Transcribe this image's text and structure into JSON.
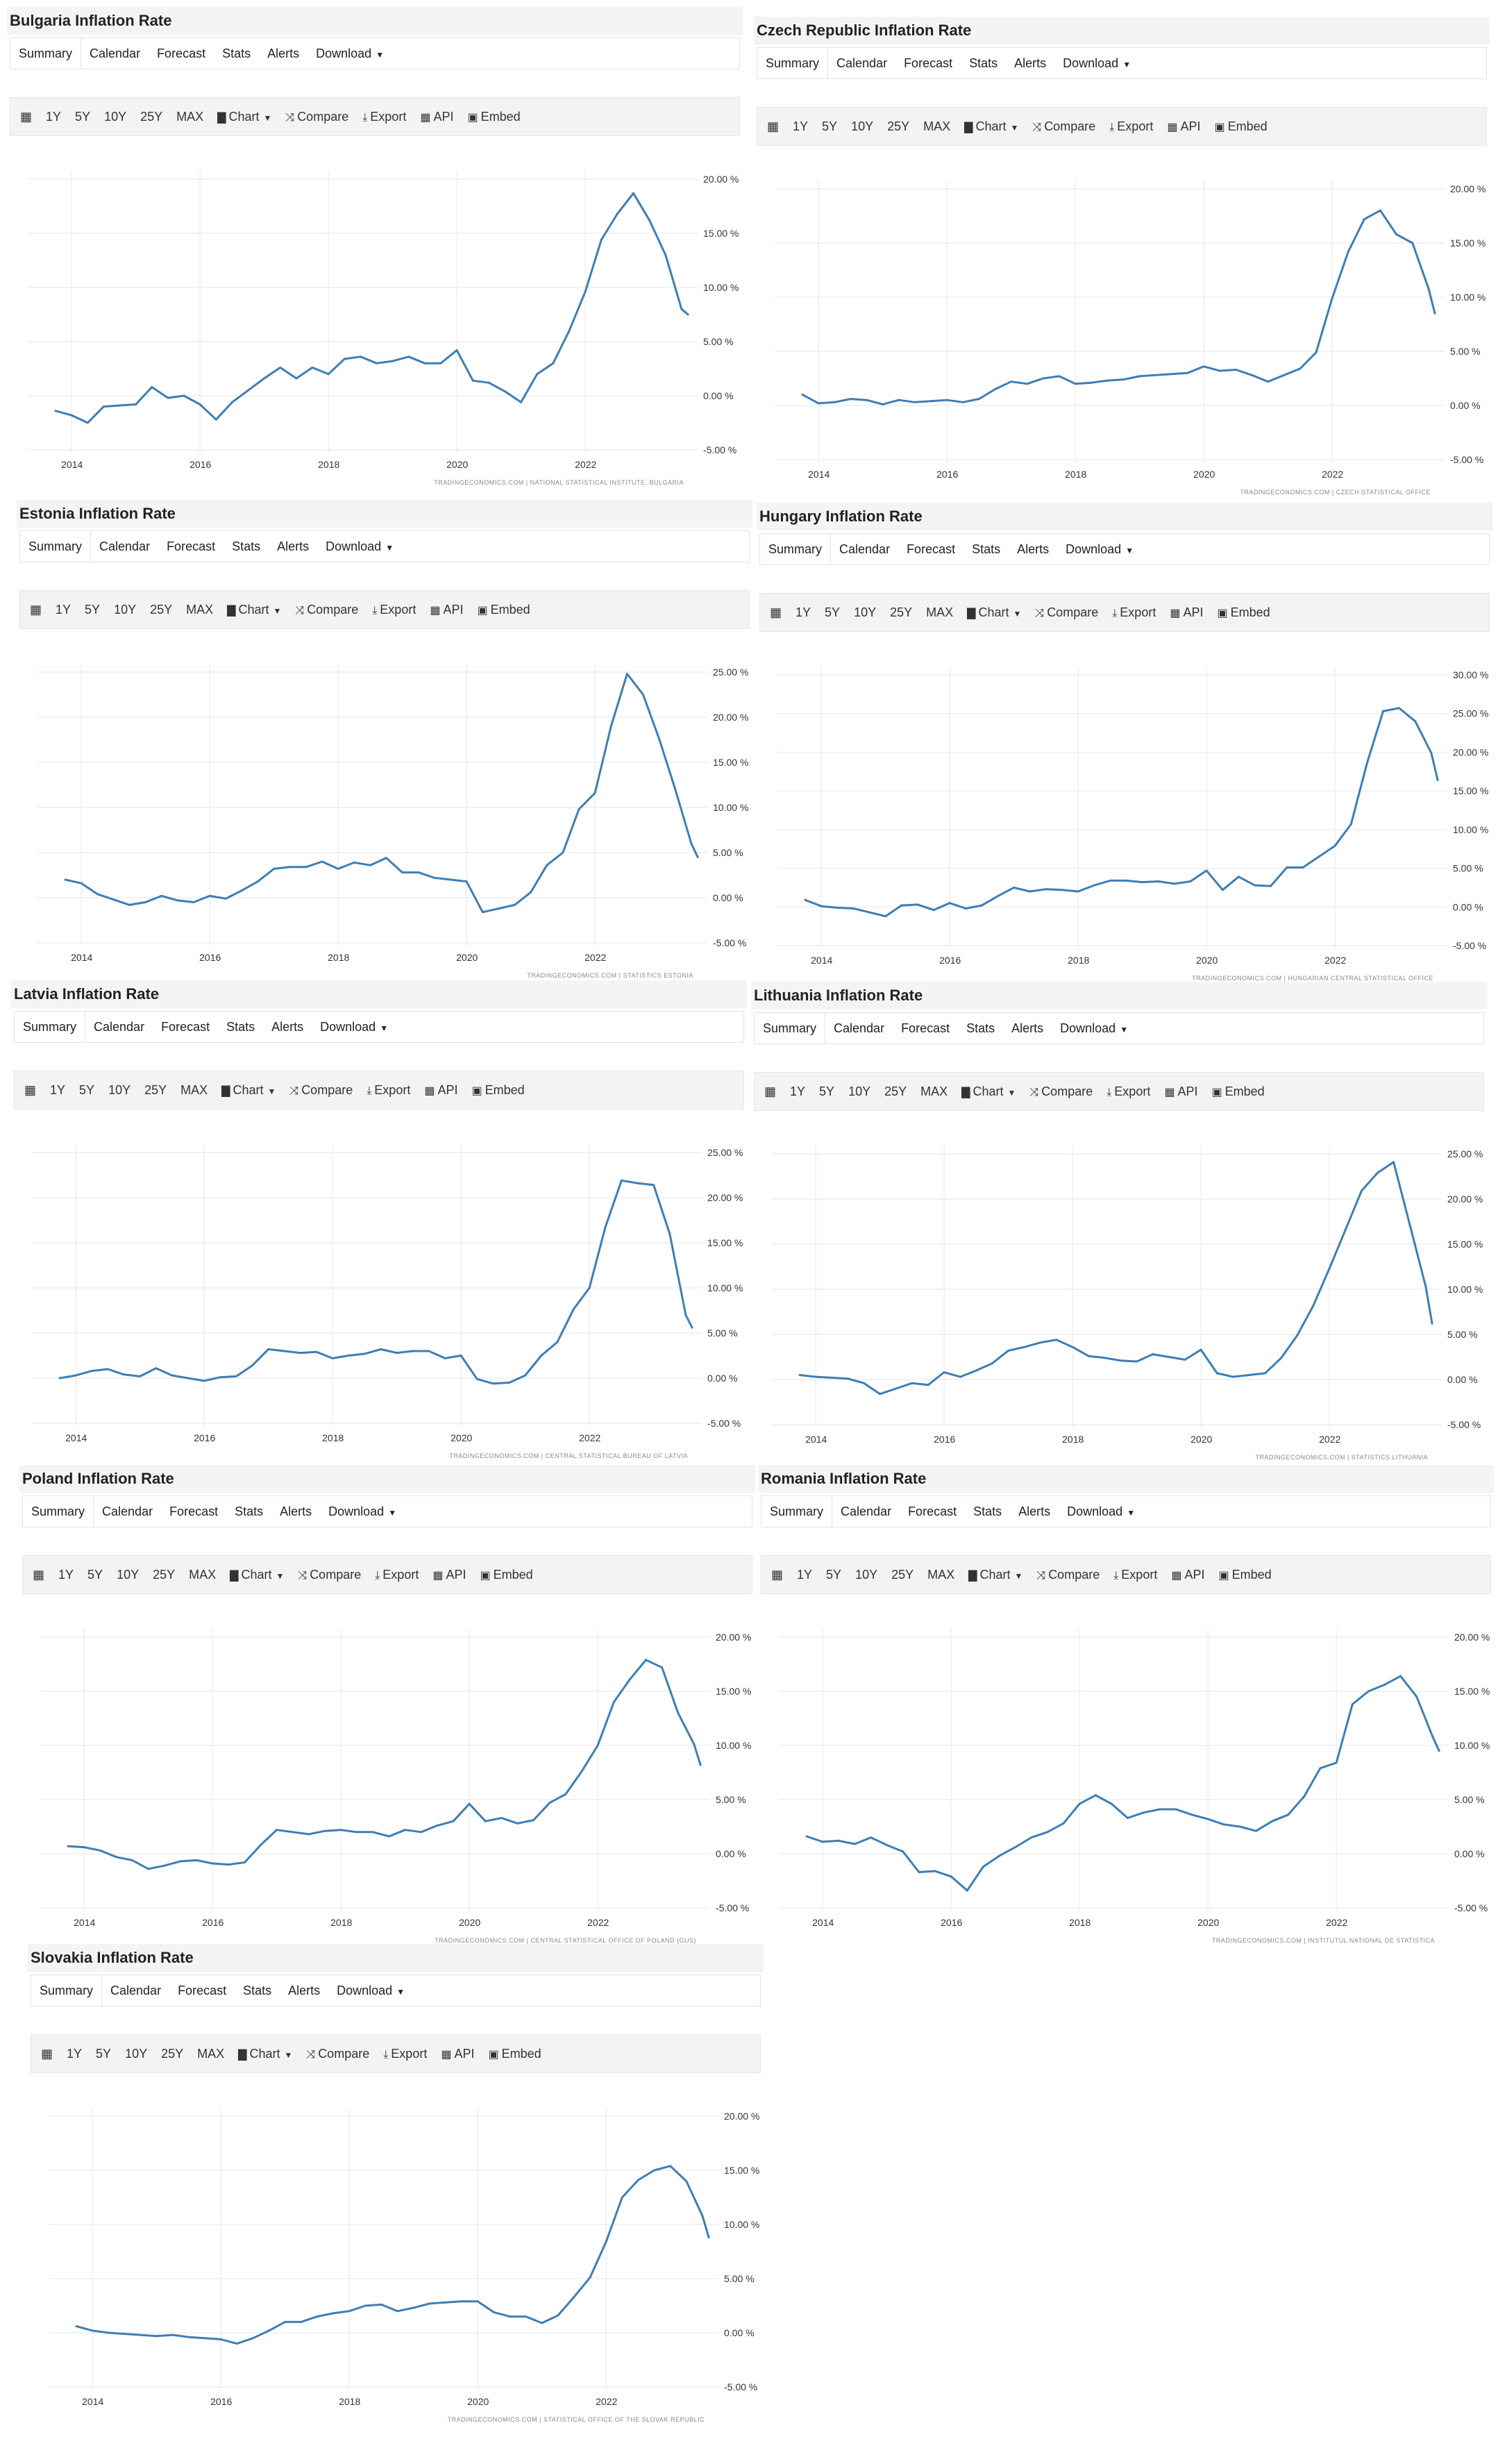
{
  "tabs": [
    "Summary",
    "Calendar",
    "Forecast",
    "Stats",
    "Alerts",
    "Download"
  ],
  "toolbar": {
    "calendar_icon": "calendar-icon",
    "ranges": [
      "1Y",
      "5Y",
      "10Y",
      "25Y",
      "MAX"
    ],
    "chart": "Chart",
    "compare": "Compare",
    "export": "Export",
    "api": "API",
    "embed": "Embed"
  },
  "colors": {
    "line": "#3e7eb4",
    "grid": "#e6e6e6",
    "title_bg": "#f4f4f4",
    "toolbar_bg": "#f3f3f3"
  },
  "chart_data": [
    {
      "id": "bulgaria",
      "type": "line",
      "title": "Bulgaria Inflation Rate",
      "source": "TRADINGECONOMICS.COM  |  NATIONAL STATISTICAL INSTITUTE, BULGARIA",
      "x_ticks": [
        "2014",
        "2016",
        "2018",
        "2020",
        "2022"
      ],
      "y_ticks": [
        "20.00 %",
        "15.00 %",
        "10.00 %",
        "5.00 %",
        "0.00 %",
        "-5.00 %"
      ],
      "ylim": [
        -5,
        20
      ],
      "xlim": [
        2013.75,
        2023.75
      ],
      "x": [
        2013.75,
        2014.0,
        2014.25,
        2014.5,
        2014.75,
        2015.0,
        2015.25,
        2015.5,
        2015.75,
        2016.0,
        2016.25,
        2016.5,
        2016.75,
        2017.0,
        2017.25,
        2017.5,
        2017.75,
        2018.0,
        2018.25,
        2018.5,
        2018.75,
        2019.0,
        2019.25,
        2019.5,
        2019.75,
        2020.0,
        2020.25,
        2020.5,
        2020.75,
        2021.0,
        2021.25,
        2021.5,
        2021.75,
        2022.0,
        2022.25,
        2022.5,
        2022.75,
        2023.0,
        2023.25,
        2023.5,
        2023.6
      ],
      "values": [
        -1.4,
        -1.8,
        -2.5,
        -1.0,
        -0.9,
        -0.8,
        0.8,
        -0.2,
        0.0,
        -0.8,
        -2.2,
        -0.6,
        0.5,
        1.6,
        2.6,
        1.6,
        2.6,
        2.0,
        3.4,
        3.6,
        3.0,
        3.2,
        3.6,
        3.0,
        3.0,
        4.2,
        1.4,
        1.2,
        0.4,
        -0.6,
        2.0,
        3.0,
        6.0,
        9.6,
        14.4,
        16.8,
        18.7,
        16.2,
        13.0,
        8.0,
        7.5
      ]
    },
    {
      "id": "czech",
      "type": "line",
      "title": "Czech Republic Inflation Rate",
      "source": "TRADINGECONOMICS.COM  |  CZECH STATISTICAL OFFICE",
      "x_ticks": [
        "2014",
        "2016",
        "2018",
        "2020",
        "2022"
      ],
      "y_ticks": [
        "20.00 %",
        "15.00 %",
        "10.00 %",
        "5.00 %",
        "0.00 %",
        "-5.00 %"
      ],
      "ylim": [
        -5,
        20
      ],
      "xlim": [
        2013.75,
        2023.75
      ],
      "x": [
        2013.75,
        2014.0,
        2014.25,
        2014.5,
        2014.75,
        2015.0,
        2015.25,
        2015.5,
        2015.75,
        2016.0,
        2016.25,
        2016.5,
        2016.75,
        2017.0,
        2017.25,
        2017.5,
        2017.75,
        2018.0,
        2018.25,
        2018.5,
        2018.75,
        2019.0,
        2019.25,
        2019.5,
        2019.75,
        2020.0,
        2020.25,
        2020.5,
        2020.75,
        2021.0,
        2021.25,
        2021.5,
        2021.75,
        2022.0,
        2022.25,
        2022.5,
        2022.75,
        2023.0,
        2023.25,
        2023.5,
        2023.6
      ],
      "values": [
        1.0,
        0.2,
        0.3,
        0.6,
        0.5,
        0.1,
        0.5,
        0.3,
        0.4,
        0.5,
        0.3,
        0.6,
        1.5,
        2.2,
        2.0,
        2.5,
        2.7,
        2.0,
        2.1,
        2.3,
        2.4,
        2.7,
        2.8,
        2.9,
        3.0,
        3.6,
        3.2,
        3.3,
        2.8,
        2.2,
        2.8,
        3.4,
        4.9,
        9.9,
        14.2,
        17.2,
        18.0,
        15.8,
        15.0,
        10.8,
        8.5
      ]
    },
    {
      "id": "estonia",
      "type": "line",
      "title": "Estonia Inflation Rate",
      "source": "TRADINGECONOMICS.COM  |  STATISTICS ESTONIA",
      "x_ticks": [
        "2014",
        "2016",
        "2018",
        "2020",
        "2022"
      ],
      "y_ticks": [
        "25.00 %",
        "20.00 %",
        "15.00 %",
        "10.00 %",
        "5.00 %",
        "0.00 %",
        "-5.00 %"
      ],
      "ylim": [
        -5,
        25
      ],
      "xlim": [
        2013.75,
        2023.75
      ],
      "x": [
        2013.75,
        2014.0,
        2014.25,
        2014.5,
        2014.75,
        2015.0,
        2015.25,
        2015.5,
        2015.75,
        2016.0,
        2016.25,
        2016.5,
        2016.75,
        2017.0,
        2017.25,
        2017.5,
        2017.75,
        2018.0,
        2018.25,
        2018.5,
        2018.75,
        2019.0,
        2019.25,
        2019.5,
        2019.75,
        2020.0,
        2020.25,
        2020.5,
        2020.75,
        2021.0,
        2021.25,
        2021.5,
        2021.75,
        2022.0,
        2022.25,
        2022.5,
        2022.75,
        2023.0,
        2023.25,
        2023.5,
        2023.6
      ],
      "values": [
        2.0,
        1.6,
        0.4,
        -0.2,
        -0.8,
        -0.5,
        0.2,
        -0.3,
        -0.5,
        0.2,
        -0.1,
        0.8,
        1.8,
        3.2,
        3.4,
        3.4,
        4.0,
        3.2,
        3.9,
        3.6,
        4.4,
        2.8,
        2.8,
        2.2,
        2.0,
        1.8,
        -1.6,
        -1.2,
        -0.8,
        0.6,
        3.6,
        5.0,
        9.8,
        11.6,
        19.0,
        24.8,
        22.5,
        17.6,
        12.0,
        6.0,
        4.5
      ]
    },
    {
      "id": "hungary",
      "type": "line",
      "title": "Hungary Inflation Rate",
      "source": "TRADINGECONOMICS.COM  |  HUNGARIAN CENTRAL STATISTICAL OFFICE",
      "x_ticks": [
        "2014",
        "2016",
        "2018",
        "2020",
        "2022"
      ],
      "y_ticks": [
        "30.00 %",
        "25.00 %",
        "20.00 %",
        "15.00 %",
        "10.00 %",
        "5.00 %",
        "0.00 %",
        "-5.00 %"
      ],
      "ylim": [
        -5,
        30
      ],
      "xlim": [
        2013.75,
        2023.75
      ],
      "x": [
        2013.75,
        2014.0,
        2014.25,
        2014.5,
        2014.75,
        2015.0,
        2015.25,
        2015.5,
        2015.75,
        2016.0,
        2016.25,
        2016.5,
        2016.75,
        2017.0,
        2017.25,
        2017.5,
        2017.75,
        2018.0,
        2018.25,
        2018.5,
        2018.75,
        2019.0,
        2019.25,
        2019.5,
        2019.75,
        2020.0,
        2020.25,
        2020.5,
        2020.75,
        2021.0,
        2021.25,
        2021.5,
        2021.75,
        2022.0,
        2022.25,
        2022.5,
        2022.75,
        2023.0,
        2023.25,
        2023.5,
        2023.6
      ],
      "values": [
        0.9,
        0.1,
        -0.1,
        -0.2,
        -0.7,
        -1.2,
        0.2,
        0.3,
        -0.4,
        0.5,
        -0.2,
        0.2,
        1.4,
        2.5,
        2.0,
        2.3,
        2.2,
        2.0,
        2.8,
        3.4,
        3.4,
        3.2,
        3.3,
        3.0,
        3.3,
        4.7,
        2.2,
        3.9,
        2.8,
        2.7,
        5.1,
        5.1,
        6.5,
        7.9,
        10.7,
        18.6,
        25.3,
        25.7,
        24.0,
        19.9,
        16.4
      ]
    },
    {
      "id": "latvia",
      "type": "line",
      "title": "Latvia Inflation Rate",
      "source": "TRADINGECONOMICS.COM  |  CENTRAL STATISTICAL BUREAU OF LATVIA",
      "x_ticks": [
        "2014",
        "2016",
        "2018",
        "2020",
        "2022"
      ],
      "y_ticks": [
        "25.00 %",
        "20.00 %",
        "15.00 %",
        "10.00 %",
        "5.00 %",
        "0.00 %",
        "-5.00 %"
      ],
      "ylim": [
        -5,
        25
      ],
      "xlim": [
        2013.75,
        2023.75
      ],
      "x": [
        2013.75,
        2014.0,
        2014.25,
        2014.5,
        2014.75,
        2015.0,
        2015.25,
        2015.5,
        2015.75,
        2016.0,
        2016.25,
        2016.5,
        2016.75,
        2017.0,
        2017.25,
        2017.5,
        2017.75,
        2018.0,
        2018.25,
        2018.5,
        2018.75,
        2019.0,
        2019.25,
        2019.5,
        2019.75,
        2020.0,
        2020.25,
        2020.5,
        2020.75,
        2021.0,
        2021.25,
        2021.5,
        2021.75,
        2022.0,
        2022.25,
        2022.5,
        2022.75,
        2023.0,
        2023.25,
        2023.5,
        2023.6
      ],
      "values": [
        0.0,
        0.3,
        0.8,
        1.0,
        0.4,
        0.2,
        1.1,
        0.3,
        0.0,
        -0.3,
        0.1,
        0.2,
        1.4,
        3.2,
        3.0,
        2.8,
        2.9,
        2.2,
        2.5,
        2.7,
        3.2,
        2.8,
        3.0,
        3.0,
        2.2,
        2.5,
        -0.1,
        -0.6,
        -0.5,
        0.3,
        2.5,
        4.0,
        7.6,
        10.0,
        16.8,
        21.9,
        21.6,
        21.4,
        16.0,
        7.0,
        5.6
      ]
    },
    {
      "id": "lithuania",
      "type": "line",
      "title": "Lithuania Inflation Rate",
      "source": "TRADINGECONOMICS.COM  |  STATISTICS LITHUANIA",
      "x_ticks": [
        "2014",
        "2016",
        "2018",
        "2020",
        "2022"
      ],
      "y_ticks": [
        "25.00 %",
        "20.00 %",
        "15.00 %",
        "10.00 %",
        "5.00 %",
        "0.00 %",
        "-5.00 %"
      ],
      "ylim": [
        -5,
        25
      ],
      "xlim": [
        2013.75,
        2023.75
      ],
      "x": [
        2013.75,
        2014.0,
        2014.25,
        2014.5,
        2014.75,
        2015.0,
        2015.25,
        2015.5,
        2015.75,
        2016.0,
        2016.25,
        2016.5,
        2016.75,
        2017.0,
        2017.25,
        2017.5,
        2017.75,
        2018.0,
        2018.25,
        2018.5,
        2018.75,
        2019.0,
        2019.25,
        2019.5,
        2019.75,
        2020.0,
        2020.25,
        2020.5,
        2020.75,
        2021.0,
        2021.25,
        2021.5,
        2021.75,
        2022.0,
        2022.25,
        2022.5,
        2022.75,
        2023.0,
        2023.25,
        2023.5,
        2023.6
      ],
      "values": [
        0.5,
        0.3,
        0.2,
        0.1,
        -0.4,
        -1.6,
        -1.0,
        -0.4,
        -0.6,
        0.8,
        0.3,
        1.0,
        1.8,
        3.2,
        3.6,
        4.1,
        4.4,
        3.6,
        2.6,
        2.4,
        2.1,
        2.0,
        2.8,
        2.5,
        2.2,
        3.3,
        0.7,
        0.3,
        0.5,
        0.7,
        2.4,
        4.9,
        8.2,
        12.3,
        16.6,
        20.9,
        22.9,
        24.1,
        17.2,
        10.3,
        6.2
      ]
    },
    {
      "id": "poland",
      "type": "line",
      "title": "Poland Inflation Rate",
      "source": "TRADINGECONOMICS.COM  |  CENTRAL STATISTICAL OFFICE OF POLAND (GUS)",
      "x_ticks": [
        "2014",
        "2016",
        "2018",
        "2020",
        "2022"
      ],
      "y_ticks": [
        "20.00 %",
        "15.00 %",
        "10.00 %",
        "5.00 %",
        "0.00 %",
        "-5.00 %"
      ],
      "ylim": [
        -5,
        20
      ],
      "xlim": [
        2013.75,
        2023.75
      ],
      "x": [
        2013.75,
        2014.0,
        2014.25,
        2014.5,
        2014.75,
        2015.0,
        2015.25,
        2015.5,
        2015.75,
        2016.0,
        2016.25,
        2016.5,
        2016.75,
        2017.0,
        2017.25,
        2017.5,
        2017.75,
        2018.0,
        2018.25,
        2018.5,
        2018.75,
        2019.0,
        2019.25,
        2019.5,
        2019.75,
        2020.0,
        2020.25,
        2020.5,
        2020.75,
        2021.0,
        2021.25,
        2021.5,
        2021.75,
        2022.0,
        2022.25,
        2022.5,
        2022.75,
        2023.0,
        2023.25,
        2023.5,
        2023.6
      ],
      "values": [
        0.7,
        0.6,
        0.3,
        -0.3,
        -0.6,
        -1.4,
        -1.1,
        -0.7,
        -0.6,
        -0.9,
        -1.0,
        -0.8,
        0.8,
        2.2,
        2.0,
        1.8,
        2.1,
        2.2,
        2.0,
        2.0,
        1.6,
        2.2,
        2.0,
        2.6,
        3.0,
        4.6,
        3.0,
        3.3,
        2.8,
        3.1,
        4.7,
        5.5,
        7.6,
        10.0,
        14.0,
        16.1,
        17.9,
        17.2,
        13.0,
        10.1,
        8.2
      ]
    },
    {
      "id": "romania",
      "type": "line",
      "title": "Romania Inflation Rate",
      "source": "TRADINGECONOMICS.COM  |  INSTITUTUL NATIONAL DE STATISTICA",
      "x_ticks": [
        "2014",
        "2016",
        "2018",
        "2020",
        "2022"
      ],
      "y_ticks": [
        "20.00 %",
        "15.00 %",
        "10.00 %",
        "5.00 %",
        "0.00 %",
        "-5.00 %"
      ],
      "ylim": [
        -5,
        20
      ],
      "xlim": [
        2013.75,
        2023.75
      ],
      "x": [
        2013.75,
        2014.0,
        2014.25,
        2014.5,
        2014.75,
        2015.0,
        2015.25,
        2015.5,
        2015.75,
        2016.0,
        2016.25,
        2016.5,
        2016.75,
        2017.0,
        2017.25,
        2017.5,
        2017.75,
        2018.0,
        2018.25,
        2018.5,
        2018.75,
        2019.0,
        2019.25,
        2019.5,
        2019.75,
        2020.0,
        2020.25,
        2020.5,
        2020.75,
        2021.0,
        2021.25,
        2021.5,
        2021.75,
        2022.0,
        2022.25,
        2022.5,
        2022.75,
        2023.0,
        2023.25,
        2023.5,
        2023.6
      ],
      "values": [
        1.6,
        1.1,
        1.2,
        0.9,
        1.5,
        0.8,
        0.2,
        -1.7,
        -1.6,
        -2.1,
        -3.4,
        -1.2,
        -0.2,
        0.6,
        1.5,
        2.0,
        2.8,
        4.6,
        5.4,
        4.6,
        3.3,
        3.8,
        4.1,
        4.1,
        3.6,
        3.2,
        2.7,
        2.5,
        2.1,
        3.0,
        3.6,
        5.3,
        7.9,
        8.4,
        13.8,
        15.0,
        15.6,
        16.4,
        14.5,
        10.8,
        9.5
      ]
    },
    {
      "id": "slovakia",
      "type": "line",
      "title": "Slovakia Inflation Rate",
      "source": "TRADINGECONOMICS.COM  |  STATISTICAL OFFICE OF THE SLOVAK REPUBLIC",
      "x_ticks": [
        "2014",
        "2016",
        "2018",
        "2020",
        "2022"
      ],
      "y_ticks": [
        "20.00 %",
        "15.00 %",
        "10.00 %",
        "5.00 %",
        "0.00 %",
        "-5.00 %"
      ],
      "ylim": [
        -5,
        20
      ],
      "xlim": [
        2013.75,
        2023.75
      ],
      "x": [
        2013.75,
        2014.0,
        2014.25,
        2014.5,
        2014.75,
        2015.0,
        2015.25,
        2015.5,
        2015.75,
        2016.0,
        2016.25,
        2016.5,
        2016.75,
        2017.0,
        2017.25,
        2017.5,
        2017.75,
        2018.0,
        2018.25,
        2018.5,
        2018.75,
        2019.0,
        2019.25,
        2019.5,
        2019.75,
        2020.0,
        2020.25,
        2020.5,
        2020.75,
        2021.0,
        2021.25,
        2021.5,
        2021.75,
        2022.0,
        2022.25,
        2022.5,
        2022.75,
        2023.0,
        2023.25,
        2023.5,
        2023.6
      ],
      "values": [
        0.6,
        0.2,
        0.0,
        -0.1,
        -0.2,
        -0.3,
        -0.2,
        -0.4,
        -0.5,
        -0.6,
        -1.0,
        -0.5,
        0.2,
        1.0,
        1.0,
        1.5,
        1.8,
        2.0,
        2.5,
        2.6,
        2.0,
        2.3,
        2.7,
        2.8,
        2.9,
        2.9,
        1.9,
        1.5,
        1.5,
        0.9,
        1.6,
        3.3,
        5.1,
        8.4,
        12.5,
        14.1,
        15.0,
        15.4,
        14.0,
        10.8,
        8.8
      ]
    }
  ]
}
